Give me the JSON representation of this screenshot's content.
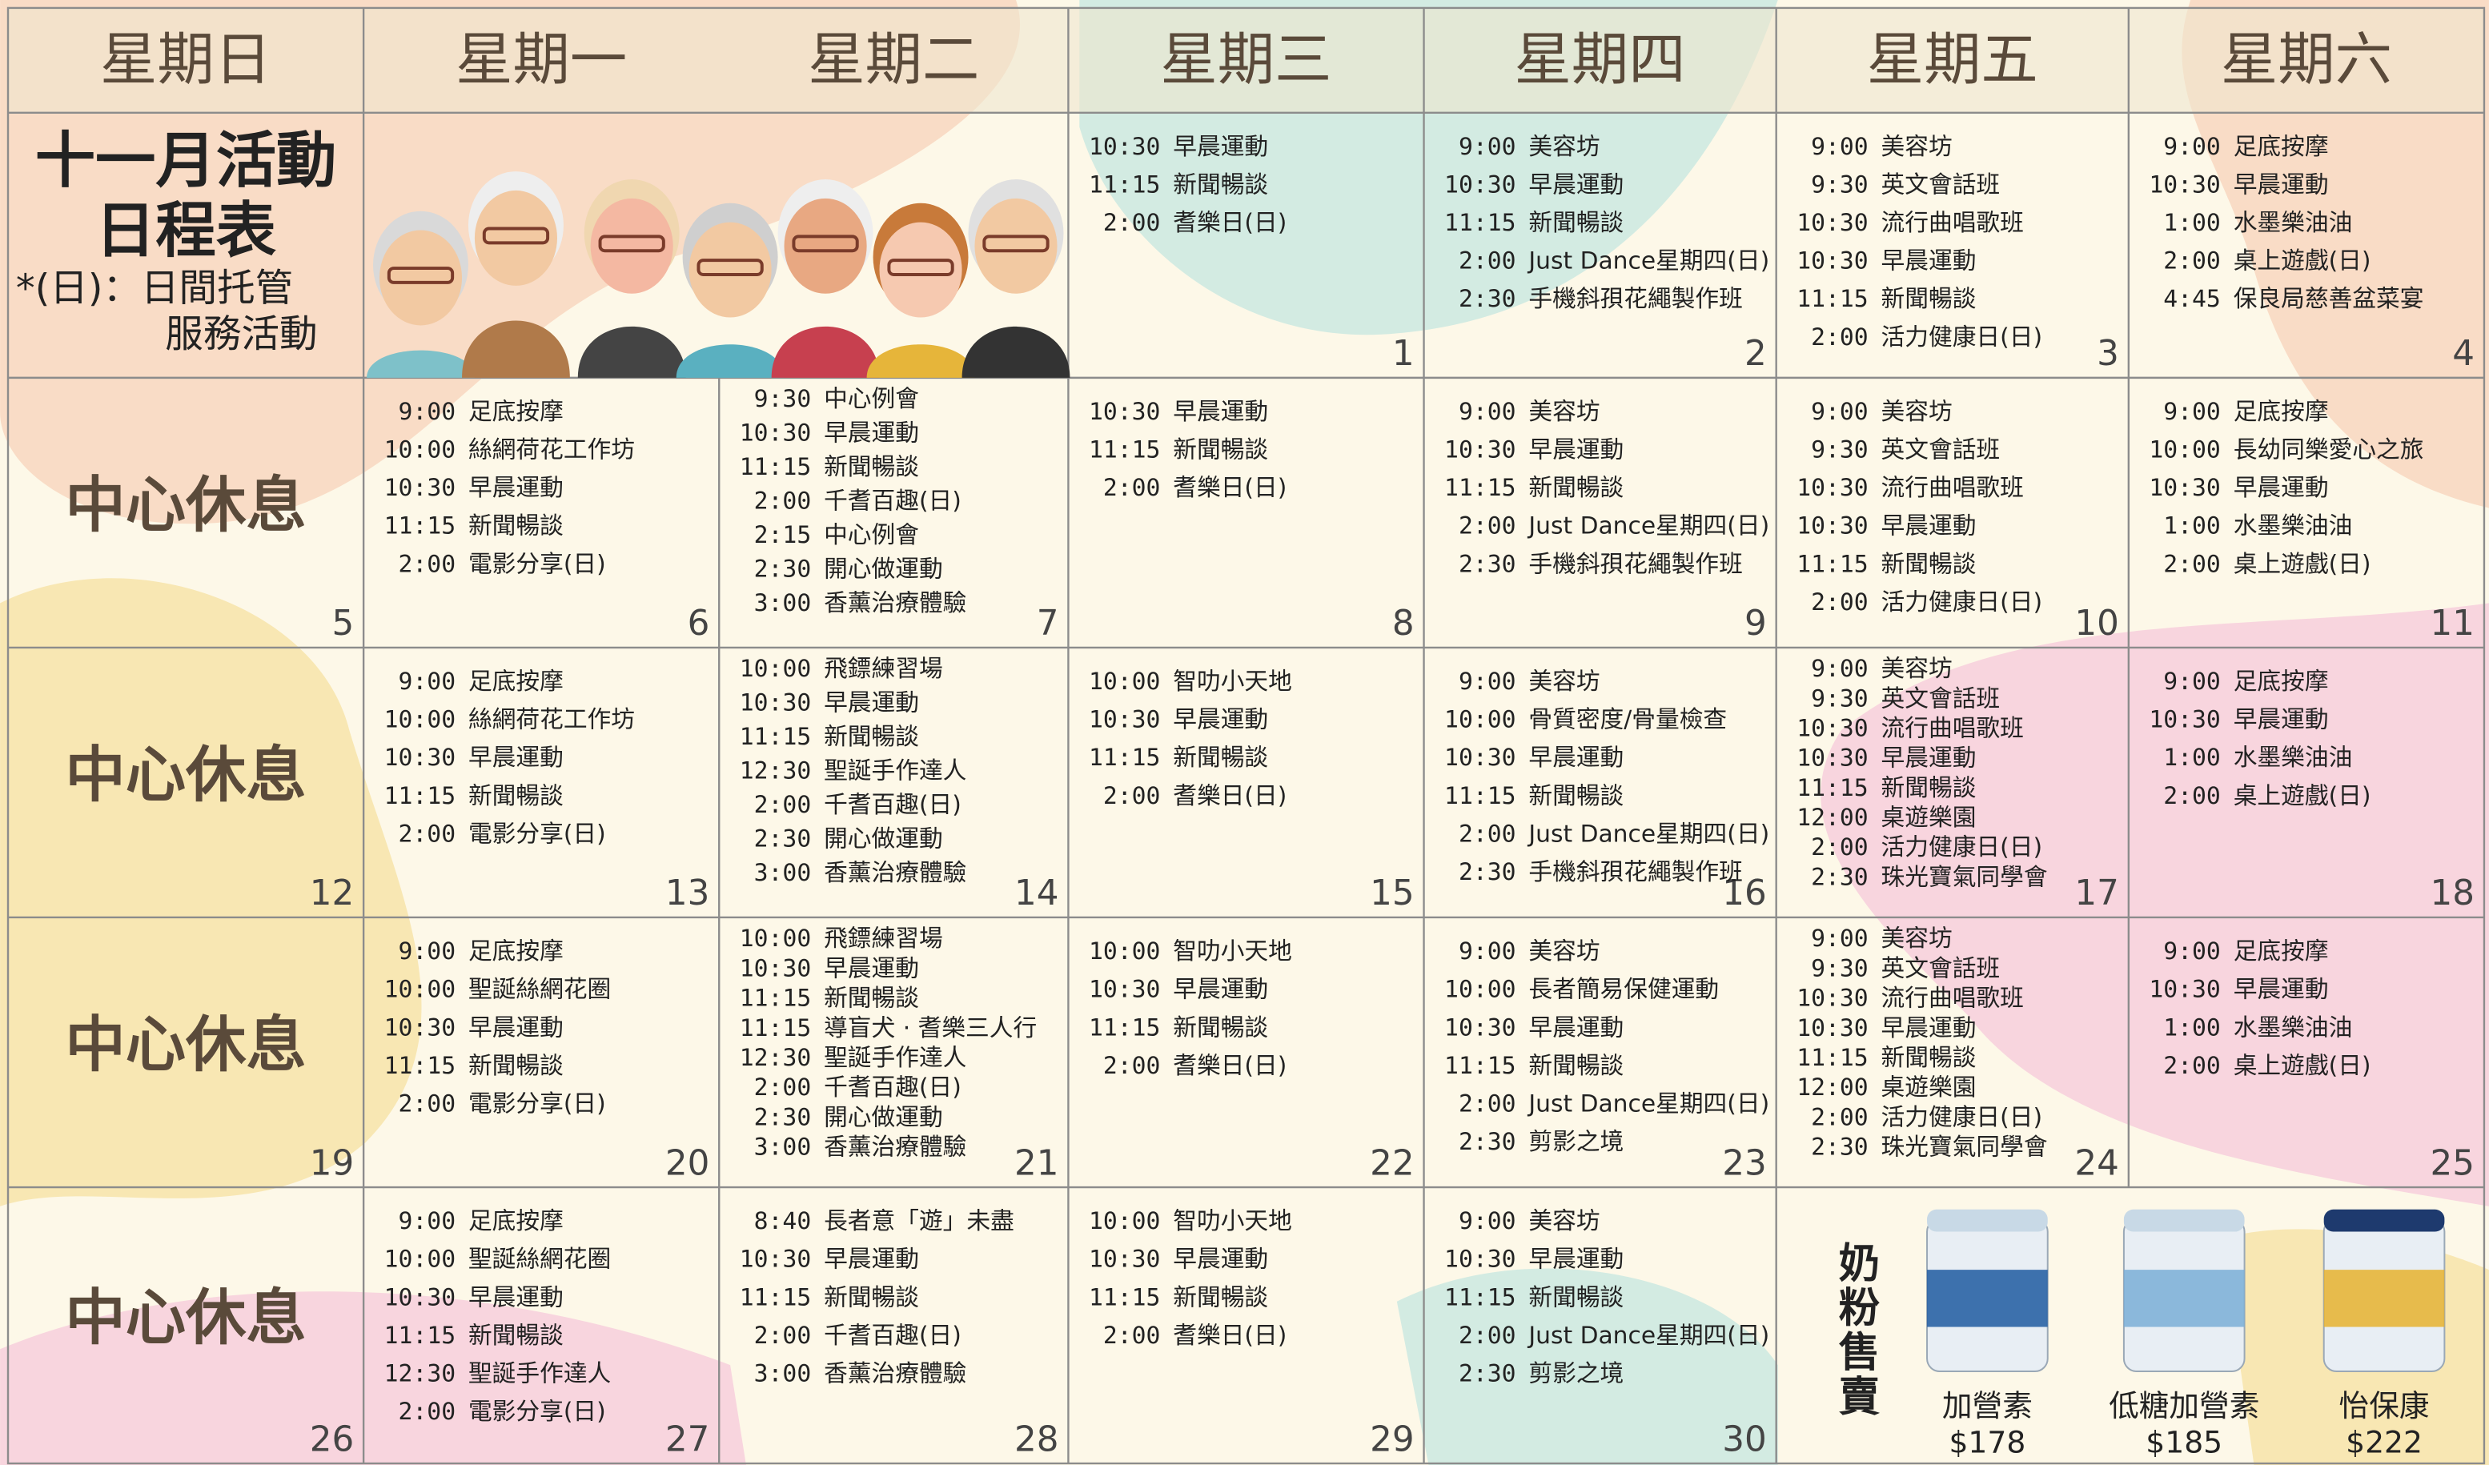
{
  "header": {
    "days": [
      "星期日",
      "星期一",
      "星期二",
      "星期三",
      "星期四",
      "星期五",
      "星期六"
    ]
  },
  "title": {
    "line1": "十一月活動",
    "line2": "日程表",
    "note_line1": "*(日)：日間托管",
    "note_line2": "服務活動"
  },
  "weeks": [
    [
      {
        "day": 1,
        "events": [
          {
            "time": "10:30",
            "activity": "早晨運動"
          },
          {
            "time": "11:15",
            "activity": "新聞暢談"
          },
          {
            "time": "2:00",
            "activity": "耆樂日(日)"
          }
        ]
      },
      {
        "day": 2,
        "events": [
          {
            "time": "9:00",
            "activity": "美容坊"
          },
          {
            "time": "10:30",
            "activity": "早晨運動"
          },
          {
            "time": "11:15",
            "activity": "新聞暢談"
          },
          {
            "time": "2:00",
            "activity": "Just Dance星期四(日)"
          },
          {
            "time": "2:30",
            "activity": "手機斜孭花繩製作班"
          }
        ]
      },
      {
        "day": 3,
        "events": [
          {
            "time": "9:00",
            "activity": "美容坊"
          },
          {
            "time": "9:30",
            "activity": "英文會話班"
          },
          {
            "time": "10:30",
            "activity": "流行曲唱歌班"
          },
          {
            "time": "10:30",
            "activity": "早晨運動"
          },
          {
            "time": "11:15",
            "activity": "新聞暢談"
          },
          {
            "time": "2:00",
            "activity": "活力健康日(日)"
          }
        ]
      },
      {
        "day": 4,
        "events": [
          {
            "time": "9:00",
            "activity": "足底按摩"
          },
          {
            "time": "10:30",
            "activity": "早晨運動"
          },
          {
            "time": "1:00",
            "activity": "水墨樂油油"
          },
          {
            "time": "2:00",
            "activity": "桌上遊戲(日)"
          },
          {
            "time": "4:45",
            "activity": "保良局慈善盆菜宴"
          }
        ]
      }
    ],
    [
      {
        "day": 5,
        "label": "中心休息"
      },
      {
        "day": 6,
        "events": [
          {
            "time": "9:00",
            "activity": "足底按摩"
          },
          {
            "time": "10:00",
            "activity": "絲網荷花工作坊"
          },
          {
            "time": "10:30",
            "activity": "早晨運動"
          },
          {
            "time": "11:15",
            "activity": "新聞暢談"
          },
          {
            "time": "2:00",
            "activity": "電影分享(日)"
          }
        ]
      },
      {
        "day": 7,
        "events": [
          {
            "time": "9:30",
            "activity": "中心例會"
          },
          {
            "time": "10:30",
            "activity": "早晨運動"
          },
          {
            "time": "11:15",
            "activity": "新聞暢談"
          },
          {
            "time": "2:00",
            "activity": "千耆百趣(日)"
          },
          {
            "time": "2:15",
            "activity": "中心例會"
          },
          {
            "time": "2:30",
            "activity": "開心做運動"
          },
          {
            "time": "3:00",
            "activity": "香薰治療體驗"
          }
        ]
      },
      {
        "day": 8,
        "events": [
          {
            "time": "10:30",
            "activity": "早晨運動"
          },
          {
            "time": "11:15",
            "activity": "新聞暢談"
          },
          {
            "time": "2:00",
            "activity": "耆樂日(日)"
          }
        ]
      },
      {
        "day": 9,
        "events": [
          {
            "time": "9:00",
            "activity": "美容坊"
          },
          {
            "time": "10:30",
            "activity": "早晨運動"
          },
          {
            "time": "11:15",
            "activity": "新聞暢談"
          },
          {
            "time": "2:00",
            "activity": "Just Dance星期四(日)"
          },
          {
            "time": "2:30",
            "activity": "手機斜孭花繩製作班"
          }
        ]
      },
      {
        "day": 10,
        "events": [
          {
            "time": "9:00",
            "activity": "美容坊"
          },
          {
            "time": "9:30",
            "activity": "英文會話班"
          },
          {
            "time": "10:30",
            "activity": "流行曲唱歌班"
          },
          {
            "time": "10:30",
            "activity": "早晨運動"
          },
          {
            "time": "11:15",
            "activity": "新聞暢談"
          },
          {
            "time": "2:00",
            "activity": "活力健康日(日)"
          }
        ]
      },
      {
        "day": 11,
        "events": [
          {
            "time": "9:00",
            "activity": "足底按摩"
          },
          {
            "time": "10:00",
            "activity": "長幼同樂愛心之旅"
          },
          {
            "time": "10:30",
            "activity": "早晨運動"
          },
          {
            "time": "1:00",
            "activity": "水墨樂油油"
          },
          {
            "time": "2:00",
            "activity": "桌上遊戲(日)"
          }
        ]
      }
    ],
    [
      {
        "day": 12,
        "label": "中心休息"
      },
      {
        "day": 13,
        "events": [
          {
            "time": "9:00",
            "activity": "足底按摩"
          },
          {
            "time": "10:00",
            "activity": "絲網荷花工作坊"
          },
          {
            "time": "10:30",
            "activity": "早晨運動"
          },
          {
            "time": "11:15",
            "activity": "新聞暢談"
          },
          {
            "time": "2:00",
            "activity": "電影分享(日)"
          }
        ]
      },
      {
        "day": 14,
        "events": [
          {
            "time": "10:00",
            "activity": "飛鏢練習場"
          },
          {
            "time": "10:30",
            "activity": "早晨運動"
          },
          {
            "time": "11:15",
            "activity": "新聞暢談"
          },
          {
            "time": "12:30",
            "activity": "聖誕手作達人"
          },
          {
            "time": "2:00",
            "activity": "千耆百趣(日)"
          },
          {
            "time": "2:30",
            "activity": "開心做運動"
          },
          {
            "time": "3:00",
            "activity": "香薰治療體驗"
          }
        ]
      },
      {
        "day": 15,
        "events": [
          {
            "time": "10:00",
            "activity": "智叻小天地"
          },
          {
            "time": "10:30",
            "activity": "早晨運動"
          },
          {
            "time": "11:15",
            "activity": "新聞暢談"
          },
          {
            "time": "2:00",
            "activity": "耆樂日(日)"
          }
        ]
      },
      {
        "day": 16,
        "events": [
          {
            "time": "9:00",
            "activity": "美容坊"
          },
          {
            "time": "10:00",
            "activity": "骨質密度/骨量檢查"
          },
          {
            "time": "10:30",
            "activity": "早晨運動"
          },
          {
            "time": "11:15",
            "activity": "新聞暢談"
          },
          {
            "time": "2:00",
            "activity": "Just Dance星期四(日)"
          },
          {
            "time": "2:30",
            "activity": "手機斜孭花繩製作班"
          }
        ]
      },
      {
        "day": 17,
        "events": [
          {
            "time": "9:00",
            "activity": "美容坊"
          },
          {
            "time": "9:30",
            "activity": "英文會話班"
          },
          {
            "time": "10:30",
            "activity": "流行曲唱歌班"
          },
          {
            "time": "10:30",
            "activity": "早晨運動"
          },
          {
            "time": "11:15",
            "activity": "新聞暢談"
          },
          {
            "time": "12:00",
            "activity": "桌遊樂園"
          },
          {
            "time": "2:00",
            "activity": "活力健康日(日)"
          },
          {
            "time": "2:30",
            "activity": "珠光寶氣同學會"
          }
        ]
      },
      {
        "day": 18,
        "events": [
          {
            "time": "9:00",
            "activity": "足底按摩"
          },
          {
            "time": "10:30",
            "activity": "早晨運動"
          },
          {
            "time": "1:00",
            "activity": "水墨樂油油"
          },
          {
            "time": "2:00",
            "activity": "桌上遊戲(日)"
          }
        ]
      }
    ],
    [
      {
        "day": 19,
        "label": "中心休息"
      },
      {
        "day": 20,
        "events": [
          {
            "time": "9:00",
            "activity": "足底按摩"
          },
          {
            "time": "10:00",
            "activity": "聖誕絲網花圈"
          },
          {
            "time": "10:30",
            "activity": "早晨運動"
          },
          {
            "time": "11:15",
            "activity": "新聞暢談"
          },
          {
            "time": "2:00",
            "activity": "電影分享(日)"
          }
        ]
      },
      {
        "day": 21,
        "events": [
          {
            "time": "10:00",
            "activity": "飛鏢練習場"
          },
          {
            "time": "10:30",
            "activity": "早晨運動"
          },
          {
            "time": "11:15",
            "activity": "新聞暢談"
          },
          {
            "time": "11:15",
            "activity": "導盲犬 · 耆樂三人行"
          },
          {
            "time": "12:30",
            "activity": "聖誕手作達人"
          },
          {
            "time": "2:00",
            "activity": "千耆百趣(日)"
          },
          {
            "time": "2:30",
            "activity": "開心做運動"
          },
          {
            "time": "3:00",
            "activity": "香薰治療體驗"
          }
        ]
      },
      {
        "day": 22,
        "events": [
          {
            "time": "10:00",
            "activity": "智叻小天地"
          },
          {
            "time": "10:30",
            "activity": "早晨運動"
          },
          {
            "time": "11:15",
            "activity": "新聞暢談"
          },
          {
            "time": "2:00",
            "activity": "耆樂日(日)"
          }
        ]
      },
      {
        "day": 23,
        "events": [
          {
            "time": "9:00",
            "activity": "美容坊"
          },
          {
            "time": "10:00",
            "activity": "長者簡易保健運動"
          },
          {
            "time": "10:30",
            "activity": "早晨運動"
          },
          {
            "time": "11:15",
            "activity": "新聞暢談"
          },
          {
            "time": "2:00",
            "activity": "Just Dance星期四(日)"
          },
          {
            "time": "2:30",
            "activity": "剪影之境"
          }
        ]
      },
      {
        "day": 24,
        "events": [
          {
            "time": "9:00",
            "activity": "美容坊"
          },
          {
            "time": "9:30",
            "activity": "英文會話班"
          },
          {
            "time": "10:30",
            "activity": "流行曲唱歌班"
          },
          {
            "time": "10:30",
            "activity": "早晨運動"
          },
          {
            "time": "11:15",
            "activity": "新聞暢談"
          },
          {
            "time": "12:00",
            "activity": "桌遊樂園"
          },
          {
            "time": "2:00",
            "activity": "活力健康日(日)"
          },
          {
            "time": "2:30",
            "activity": "珠光寶氣同學會"
          }
        ]
      },
      {
        "day": 25,
        "events": [
          {
            "time": "9:00",
            "activity": "足底按摩"
          },
          {
            "time": "10:30",
            "activity": "早晨運動"
          },
          {
            "time": "1:00",
            "activity": "水墨樂油油"
          },
          {
            "time": "2:00",
            "activity": "桌上遊戲(日)"
          }
        ]
      }
    ],
    [
      {
        "day": 26,
        "label": "中心休息"
      },
      {
        "day": 27,
        "events": [
          {
            "time": "9:00",
            "activity": "足底按摩"
          },
          {
            "time": "10:00",
            "activity": "聖誕絲網花圈"
          },
          {
            "time": "10:30",
            "activity": "早晨運動"
          },
          {
            "time": "11:15",
            "activity": "新聞暢談"
          },
          {
            "time": "12:30",
            "activity": "聖誕手作達人"
          },
          {
            "time": "2:00",
            "activity": "電影分享(日)"
          }
        ]
      },
      {
        "day": 28,
        "events": [
          {
            "time": "8:40",
            "activity": "長者意「遊」未盡"
          },
          {
            "time": "10:30",
            "activity": "早晨運動"
          },
          {
            "time": "11:15",
            "activity": "新聞暢談"
          },
          {
            "time": "2:00",
            "activity": "千耆百趣(日)"
          },
          {
            "time": "3:00",
            "activity": "香薰治療體驗"
          }
        ]
      },
      {
        "day": 29,
        "events": [
          {
            "time": "10:00",
            "activity": "智叻小天地"
          },
          {
            "time": "10:30",
            "activity": "早晨運動"
          },
          {
            "time": "11:15",
            "activity": "新聞暢談"
          },
          {
            "time": "2:00",
            "activity": "耆樂日(日)"
          }
        ]
      },
      {
        "day": 30,
        "events": [
          {
            "time": "9:00",
            "activity": "美容坊"
          },
          {
            "time": "10:30",
            "activity": "早晨運動"
          },
          {
            "time": "11:15",
            "activity": "新聞暢談"
          },
          {
            "time": "2:00",
            "activity": "Just Dance星期四(日)"
          },
          {
            "time": "2:30",
            "activity": "剪影之境"
          }
        ]
      }
    ]
  ],
  "promo": {
    "title": "奶粉售賣",
    "products": [
      {
        "name": "加營素",
        "price": "$178"
      },
      {
        "name": "低糖加營素",
        "price": "$185"
      },
      {
        "name": "怡保康",
        "price": "$222"
      }
    ]
  }
}
